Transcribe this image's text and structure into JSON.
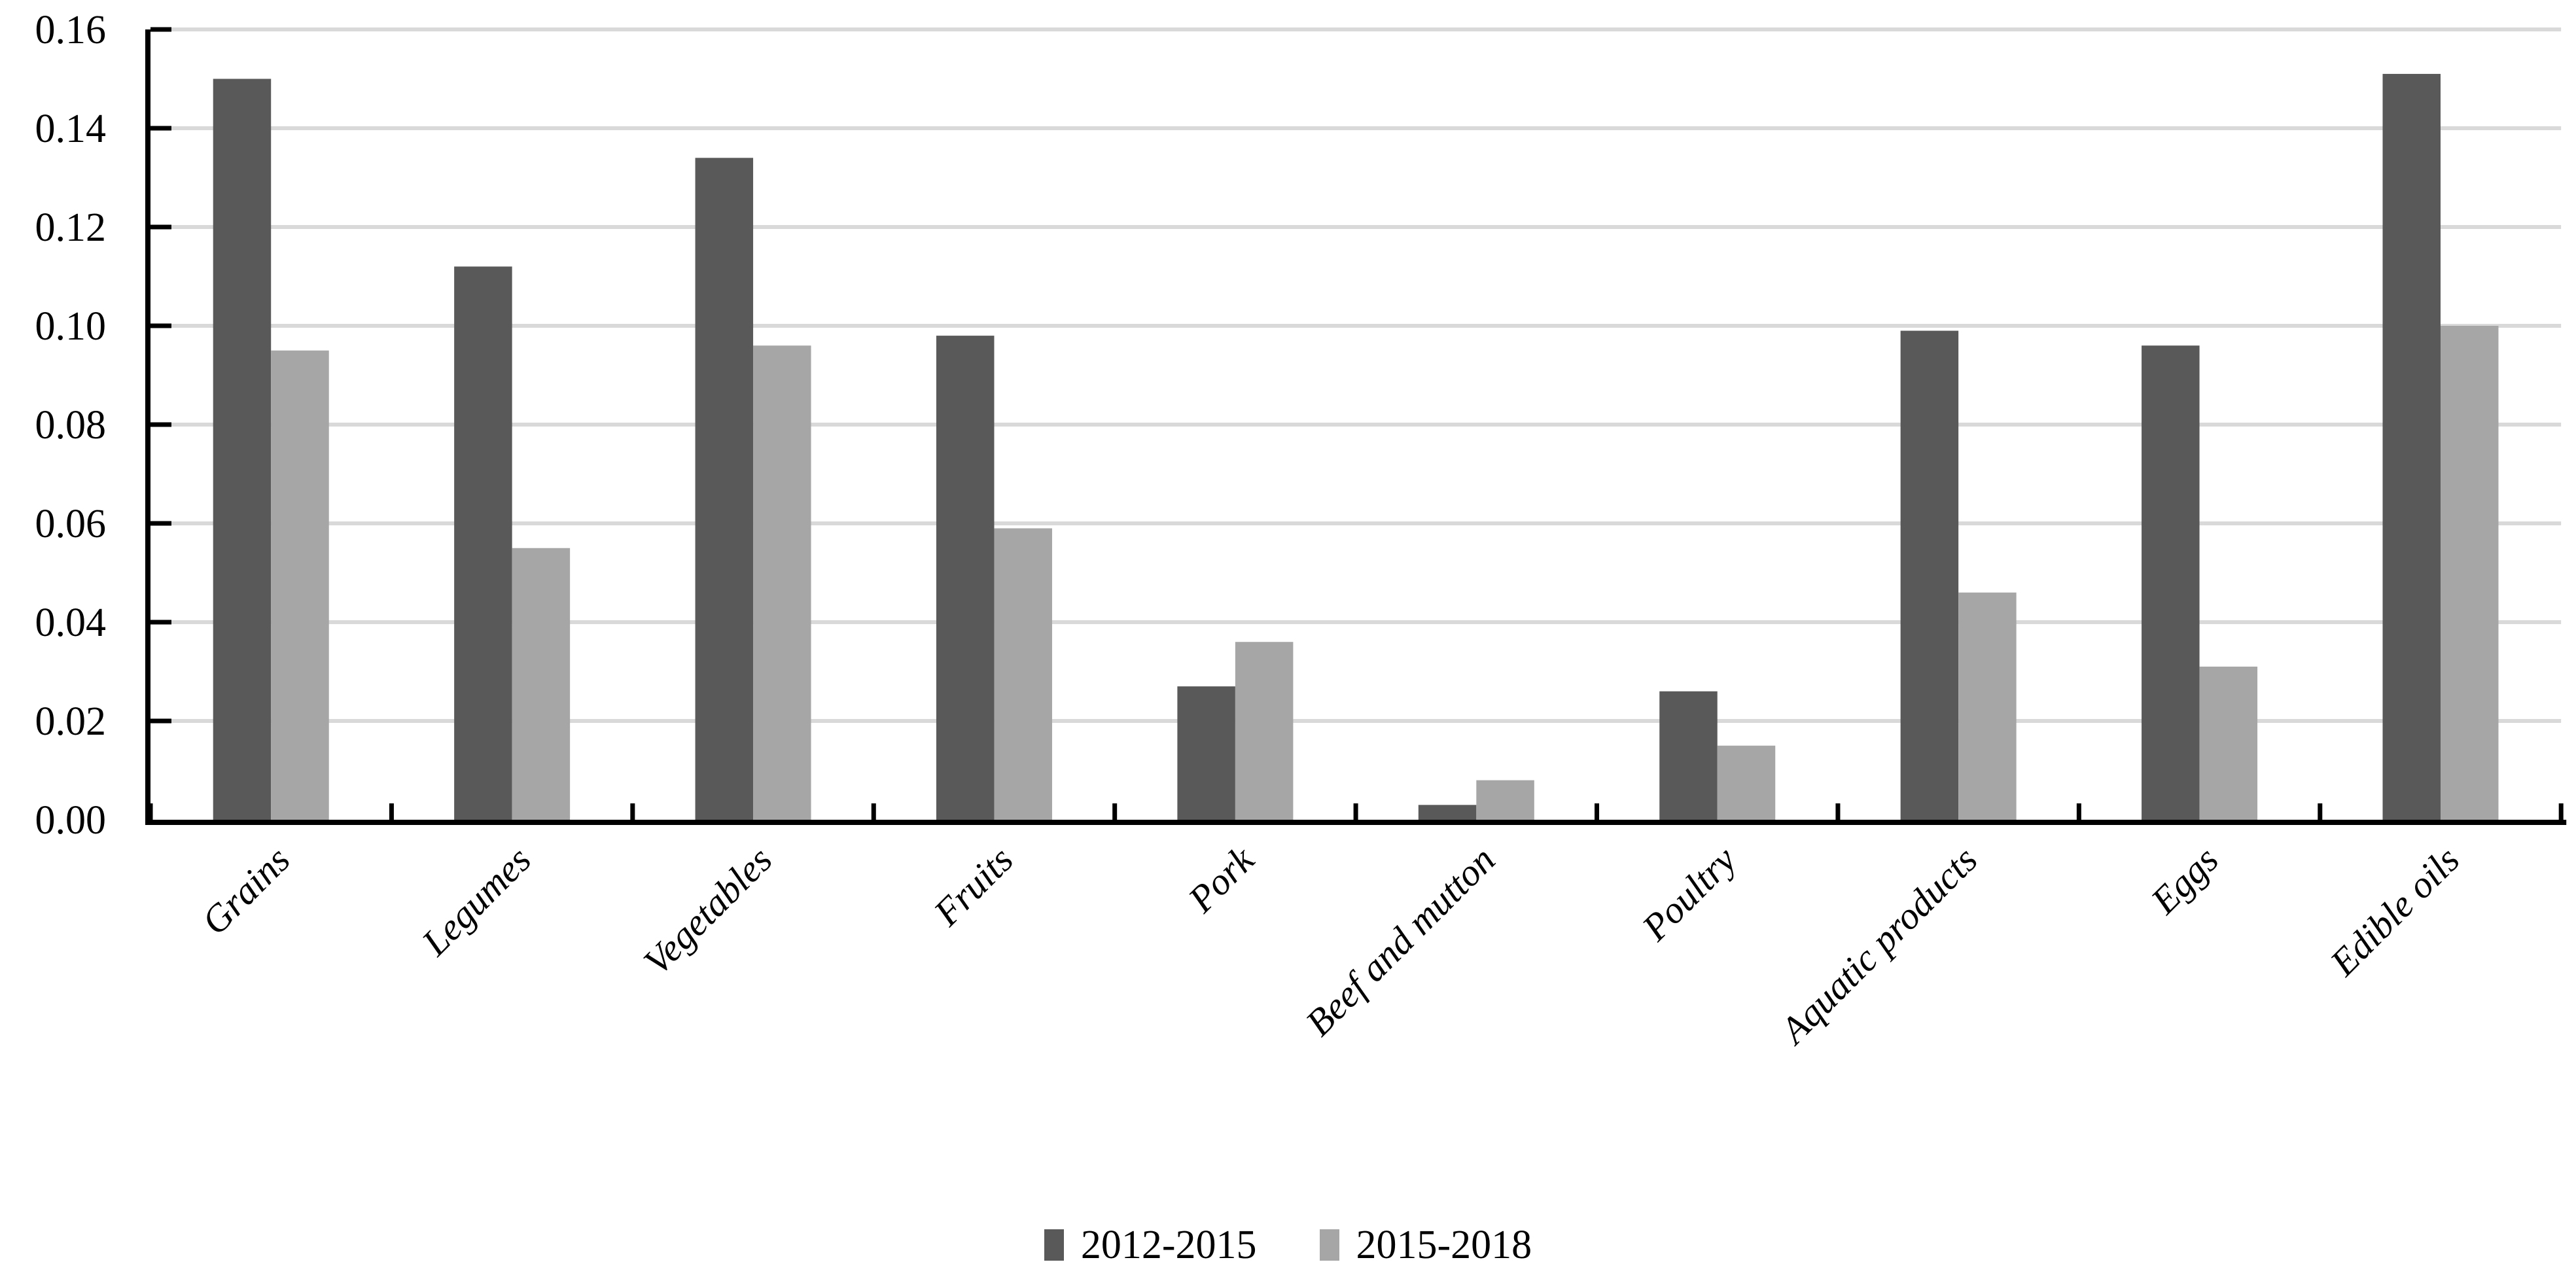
{
  "chart_data": {
    "type": "bar",
    "title": "",
    "xlabel": "",
    "ylabel": "",
    "categories": [
      "Grains",
      "Legumes",
      "Vegetables",
      "Fruits",
      "Pork",
      "Beef and mutton",
      "Poultry",
      "Aquatic products",
      "Eggs",
      "Edible oils"
    ],
    "series": [
      {
        "name": "2012-2015",
        "color": "#595959",
        "values": [
          0.15,
          0.112,
          0.134,
          0.098,
          0.027,
          0.003,
          0.026,
          0.099,
          0.096,
          0.151
        ]
      },
      {
        "name": "2015-2018",
        "color": "#a6a6a6",
        "values": [
          0.095,
          0.055,
          0.096,
          0.059,
          0.036,
          0.008,
          0.015,
          0.046,
          0.031,
          0.1
        ]
      }
    ],
    "ylim": [
      0.0,
      0.16
    ],
    "ytick_step": 0.02,
    "ytick_labels": [
      "0.00",
      "0.02",
      "0.04",
      "0.06",
      "0.08",
      "0.10",
      "0.12",
      "0.14",
      "0.16"
    ],
    "grid": "horizontal-only",
    "gridline_color": "#d9d9d9",
    "axis_color": "#000000",
    "text_color": "#000000",
    "background_color": "#ffffff",
    "legend_position": "bottom-center",
    "category_label_style": "italic, rotated 45deg",
    "tick_style": "inward"
  }
}
